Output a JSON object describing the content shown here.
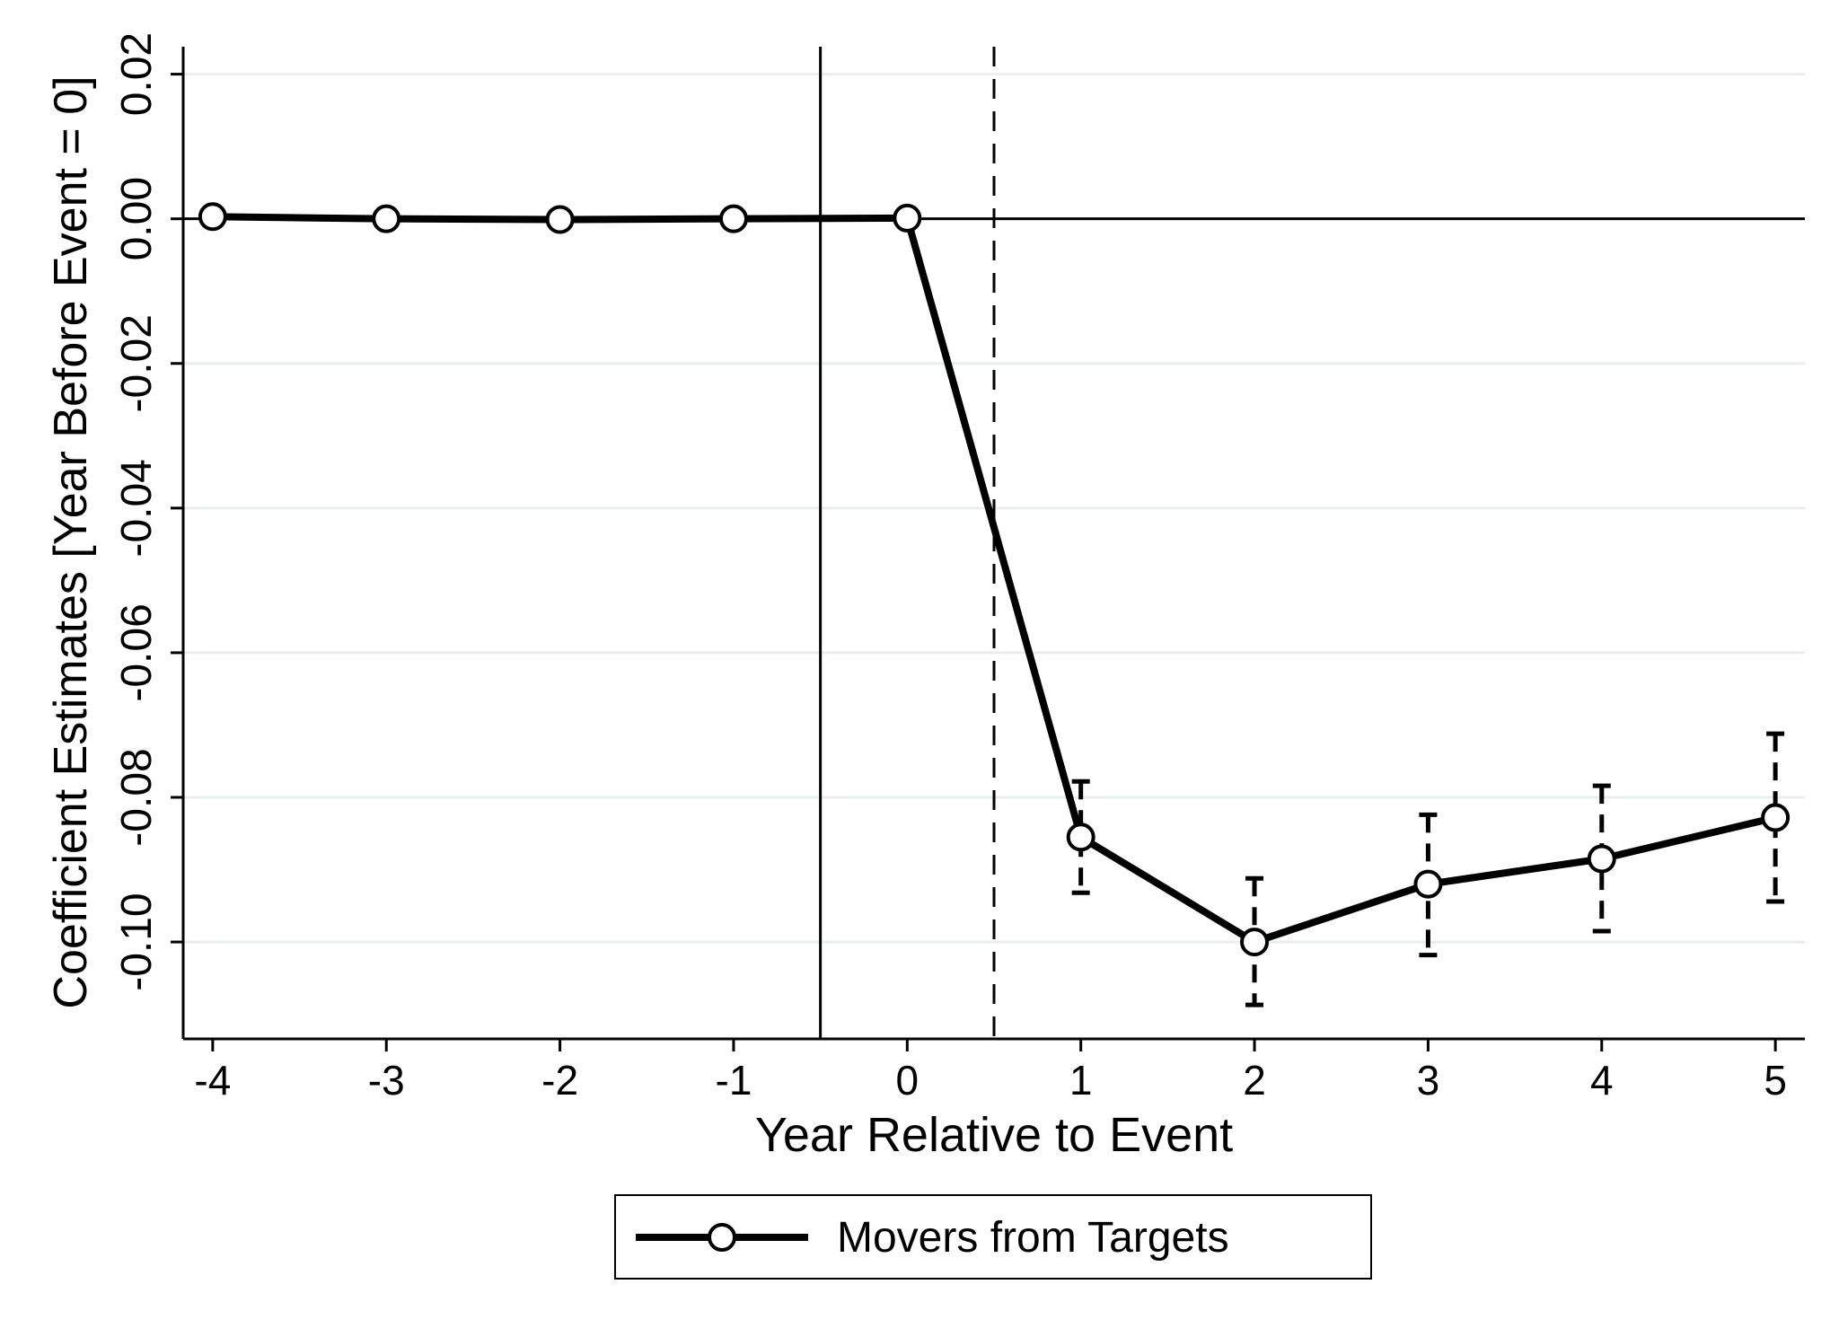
{
  "chart_data": {
    "type": "line",
    "xlabel": "Year Relative to Event",
    "ylabel": "Coefficient Estimates [Year Before Event = 0]",
    "x_ticks": [
      -4,
      -3,
      -2,
      -1,
      0,
      1,
      2,
      3,
      4,
      5
    ],
    "x_tick_labels": [
      "-4",
      "-3",
      "-2",
      "-1",
      "0",
      "1",
      "2",
      "3",
      "4",
      "5"
    ],
    "y_ticks": [
      -0.1,
      -0.08,
      -0.06,
      -0.04,
      -0.02,
      0.0,
      0.02
    ],
    "y_tick_labels": [
      "-0.10",
      "-0.08",
      "-0.06",
      "-0.04",
      "-0.02",
      "0.00",
      "0.02"
    ],
    "xlim": [
      -4.17,
      5.17
    ],
    "ylim": [
      -0.1134,
      0.0238
    ],
    "grid": "horizontal",
    "reference_lines": {
      "horizontal_solid": 0,
      "vertical_solid": -0.5,
      "vertical_dashed": 0.5
    },
    "legend_position": "bottom-center",
    "series": [
      {
        "name": "Movers from Targets",
        "color": "#000000",
        "marker": "hollow-circle",
        "x": [
          -4,
          -3,
          -2,
          -1,
          0,
          1,
          2,
          3,
          4,
          5
        ],
        "y": [
          0.0003,
          0.0,
          -0.0001,
          0.0,
          0.0001,
          -0.0855,
          -0.1,
          -0.092,
          -0.0885,
          -0.0828
        ],
        "ci_lower": [
          null,
          null,
          null,
          null,
          null,
          -0.0932,
          -0.1087,
          -0.1018,
          -0.0985,
          -0.0944
        ],
        "ci_upper": [
          null,
          null,
          null,
          null,
          null,
          -0.0778,
          -0.0912,
          -0.0824,
          -0.0784,
          -0.0712
        ]
      }
    ]
  }
}
